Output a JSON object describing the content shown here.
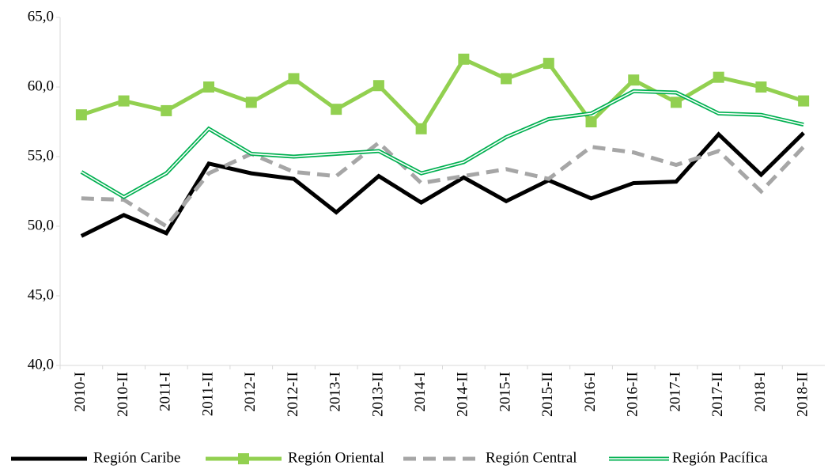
{
  "chart_data": {
    "type": "line",
    "categories": [
      "2010-I",
      "2010-II",
      "2011-I",
      "2011-II",
      "2012-I",
      "2012-II",
      "2013-I",
      "2013-II",
      "2014-I",
      "2014-II",
      "2015-I",
      "2015-II",
      "2016-I",
      "2016-II",
      "2017-I",
      "2017-II",
      "2018-I",
      "2018-II"
    ],
    "series": [
      {
        "name": "Región Caribe",
        "color": "#000000",
        "line_style": "solid",
        "values": [
          49.3,
          50.8,
          49.5,
          54.5,
          53.8,
          53.4,
          51.0,
          53.6,
          51.7,
          53.5,
          51.8,
          53.3,
          52.0,
          53.1,
          53.2,
          56.6,
          53.7,
          56.7
        ]
      },
      {
        "name": "Región Oriental",
        "color": "#92d050",
        "line_style": "solid",
        "marker": "square",
        "values": [
          58.0,
          59.0,
          58.3,
          60.0,
          58.9,
          60.6,
          58.4,
          60.1,
          57.0,
          62.0,
          60.6,
          61.7,
          57.5,
          60.5,
          58.9,
          60.7,
          60.0,
          59.0
        ]
      },
      {
        "name": "Región Central",
        "color": "#a6a6a6",
        "line_style": "dashed",
        "values": [
          52.0,
          51.9,
          50.0,
          53.8,
          55.2,
          53.9,
          53.6,
          56.0,
          53.1,
          53.6,
          54.1,
          53.4,
          55.7,
          55.3,
          54.4,
          55.4,
          52.5,
          55.7
        ]
      },
      {
        "name": "Región Pacífica",
        "color": "#00b050",
        "line_style": "double",
        "values": [
          53.9,
          52.1,
          53.8,
          57.0,
          55.2,
          55.0,
          55.2,
          55.4,
          53.8,
          54.6,
          56.4,
          57.7,
          58.1,
          59.7,
          59.6,
          58.1,
          58.0,
          57.3
        ]
      }
    ],
    "ylim": [
      40,
      65
    ],
    "yticks": [
      {
        "value": 40,
        "label": "40,0"
      },
      {
        "value": 45,
        "label": "45,0"
      },
      {
        "value": 50,
        "label": "50,0"
      },
      {
        "value": 55,
        "label": "55,0"
      },
      {
        "value": 60,
        "label": "60,0"
      },
      {
        "value": 65,
        "label": "65,0"
      }
    ],
    "grid": false,
    "legend": "bottom"
  }
}
